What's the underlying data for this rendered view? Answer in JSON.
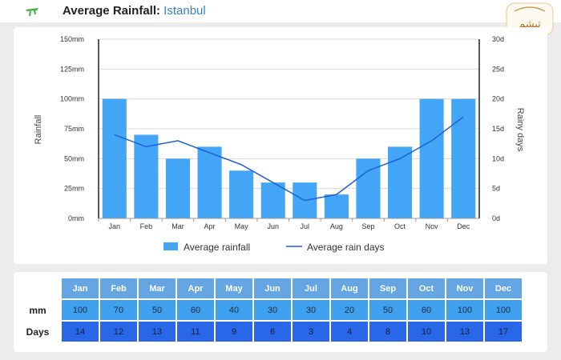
{
  "header": {
    "title_prefix": "Average Rainfall:",
    "city": "Istanbul",
    "watermark_text": "تیشم"
  },
  "chart_data": {
    "type": "bar",
    "categories": [
      "Jan",
      "Feb",
      "Mar",
      "Apr",
      "May",
      "Jun",
      "Jul",
      "Aug",
      "Sep",
      "Oct",
      "Nov",
      "Dec"
    ],
    "series": [
      {
        "name": "Average rainfall",
        "kind": "bar",
        "axis": "left",
        "values": [
          100,
          70,
          50,
          60,
          40,
          30,
          30,
          20,
          50,
          60,
          100,
          100
        ]
      },
      {
        "name": "Average rain days",
        "kind": "line",
        "axis": "right",
        "values": [
          14,
          12,
          13,
          11,
          9,
          6,
          3,
          4,
          8,
          10,
          13,
          17
        ]
      }
    ],
    "ylabel": "Rainfall",
    "y2label": "Rainy days",
    "ylim": [
      0,
      150
    ],
    "y2lim": [
      0,
      30
    ],
    "yticks": [
      "0mm",
      "25mm",
      "50mm",
      "75mm",
      "100mm",
      "125mm",
      "150mm"
    ],
    "y2ticks": [
      "0d",
      "5d",
      "10d",
      "15d",
      "20d",
      "25d",
      "30d"
    ],
    "colors": {
      "bar": "#42a5f5",
      "line": "#1f5fd6",
      "grid": "#d9d9d9"
    }
  },
  "legend": {
    "rainfall": "Average rainfall",
    "days": "Average rain days"
  },
  "table": {
    "months": [
      "Jan",
      "Feb",
      "Mar",
      "Apr",
      "May",
      "Jun",
      "Jul",
      "Aug",
      "Sep",
      "Oct",
      "Nov",
      "Dec"
    ],
    "mm_label": "mm",
    "days_label": "Days",
    "mm": [
      "100",
      "70",
      "50",
      "60",
      "40",
      "30",
      "30",
      "20",
      "50",
      "60",
      "100",
      "100"
    ],
    "days": [
      "14",
      "12",
      "13",
      "11",
      "9",
      "6",
      "3",
      "4",
      "8",
      "10",
      "13",
      "17"
    ]
  }
}
